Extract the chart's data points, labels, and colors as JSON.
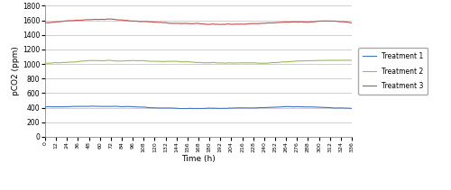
{
  "title": "",
  "xlabel": "Time (h)",
  "ylabel": "pCO2 (ppm)",
  "xlim": [
    0,
    336
  ],
  "ylim": [
    0,
    1800
  ],
  "yticks": [
    0,
    200,
    400,
    600,
    800,
    1000,
    1200,
    1400,
    1600,
    1800
  ],
  "xticks": [
    0,
    12,
    24,
    36,
    48,
    60,
    72,
    84,
    96,
    108,
    120,
    132,
    144,
    156,
    168,
    180,
    192,
    204,
    216,
    228,
    240,
    252,
    264,
    276,
    288,
    300,
    312,
    324,
    336
  ],
  "treatment1_base": 410,
  "treatment2_base": 1010,
  "treatment3_base": 1565,
  "treatment1_color": "#4472C4",
  "treatment2_color": "#9BBB59",
  "treatment3_color": "#C0504D",
  "grid_color": "#C8C8C8",
  "background_color": "#FFFFFF",
  "legend_labels": [
    "Treatment 1",
    "Treatment 2",
    "Treatment 3"
  ],
  "n_points": 800,
  "seed": 42,
  "t1_noise": 2.5,
  "t2_noise": 3.5,
  "t3_noise": 4.5,
  "t1_trend": -15,
  "t2_trend": -40,
  "t3_trend": -30
}
